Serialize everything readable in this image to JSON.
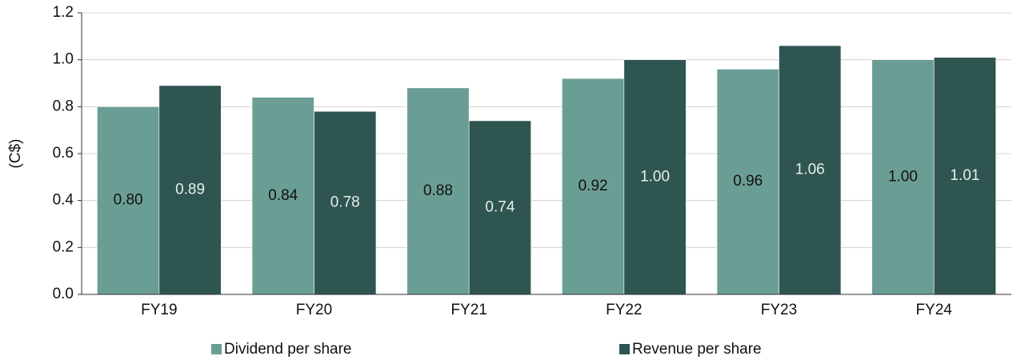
{
  "chart_data": {
    "type": "bar",
    "ylabel": "(C$)",
    "categories": [
      "FY19",
      "FY20",
      "FY21",
      "FY22",
      "FY23",
      "FY24"
    ],
    "series": [
      {
        "name": "Dividend per share",
        "color": "#6a9e94",
        "values": [
          0.8,
          0.84,
          0.88,
          0.92,
          0.96,
          1.0
        ],
        "value_labels": [
          "0.80",
          "0.84",
          "0.88",
          "0.92",
          "0.96",
          "1.00"
        ]
      },
      {
        "name": "Revenue per share",
        "color": "#2f5551",
        "values": [
          0.89,
          0.78,
          0.74,
          1.0,
          1.06,
          1.01
        ],
        "value_labels": [
          "0.89",
          "0.78",
          "0.74",
          "1.00",
          "1.06",
          "1.01"
        ]
      }
    ],
    "ylim": [
      0,
      1.2
    ],
    "yticks": [
      {
        "value": 0,
        "label": "0.0"
      },
      0.2,
      0.4,
      0.6,
      0.8,
      {
        "value": 1,
        "label": "1.0"
      },
      1.2
    ],
    "grid": true,
    "legend": "bottom"
  }
}
